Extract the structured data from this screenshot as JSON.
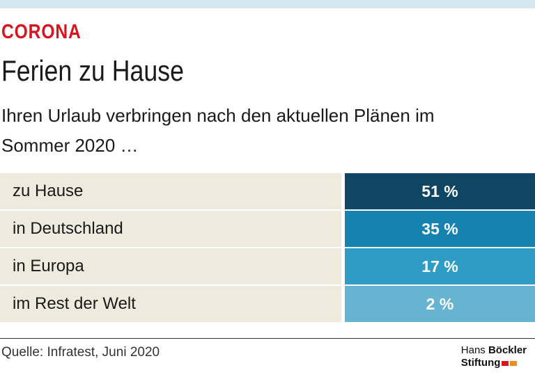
{
  "header": {
    "kicker": "CORONA",
    "title": "Ferien zu Hause",
    "subtitle": "Ihren Urlaub verbringen nach den aktuellen Plänen im Sommer 2020 …"
  },
  "table": {
    "rows": [
      [
        "zu Hause",
        "51 %"
      ],
      [
        "in Deutschland",
        "35 %"
      ],
      [
        "in Europa",
        "17 %"
      ],
      [
        "im Rest der Welt",
        "2 %"
      ]
    ],
    "row_colors": [
      "#0f4663",
      "#1582b0",
      "#2f9cc6",
      "#66b4d2"
    ]
  },
  "footer": {
    "source": "Quelle: Infratest, Juni 2020",
    "logo_line1_a": "Hans",
    "logo_line1_b": "Böckler",
    "logo_line2": "Stiftung"
  }
}
